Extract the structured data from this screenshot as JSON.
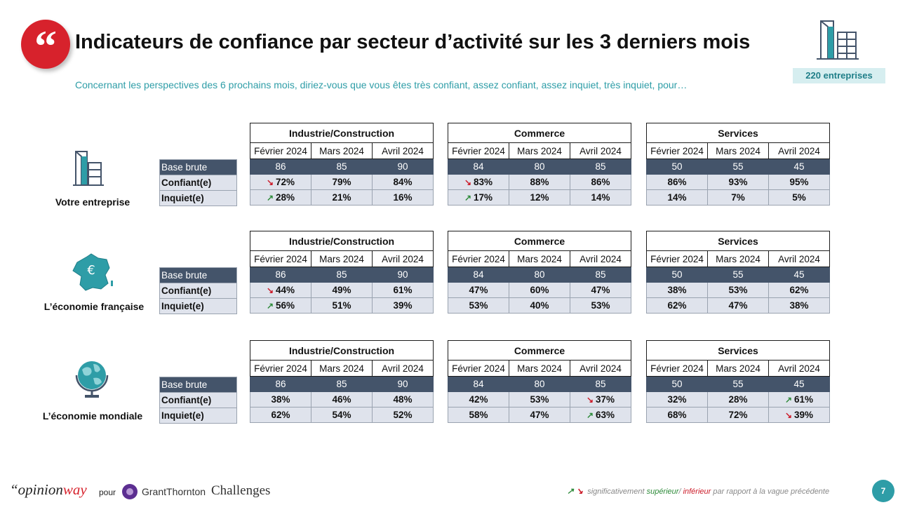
{
  "title": "Indicateurs de confiance par secteur d’activité sur les 3 derniers mois",
  "subtitle": "Concernant les perspectives des 6 prochains mois, diriez-vous que vous êtes très confiant, assez confiant, assez inquiet, très inquiet, pour…",
  "quote_glyph": "“",
  "badge": "220 entreprises",
  "row_labels": {
    "base": "Base brute",
    "confiant": "Confiant(e)",
    "inquiet": "Inquiet(e)"
  },
  "months": [
    "Février 2024",
    "Mars 2024",
    "Avril 2024"
  ],
  "arrows": {
    "up": "↗",
    "down": "↘"
  },
  "icons": {
    "q1": "building-icon",
    "q2": "france-map-euro-icon",
    "q3": "globe-icon",
    "badge": "building-icon"
  },
  "colors": {
    "accent_red": "#d7222c",
    "teal": "#2e9da7",
    "header_dark": "#44546a",
    "cell_light": "#dfe3ec",
    "up": "#2e8b3a",
    "down": "#cc1c2a"
  },
  "blocks": [
    {
      "label": "Votre entreprise",
      "sectors": [
        {
          "name": "Industrie/Construction",
          "base": [
            "86",
            "85",
            "90"
          ],
          "confiant": [
            "72%",
            "79%",
            "84%"
          ],
          "inquiet": [
            "28%",
            "21%",
            "16%"
          ],
          "confiant_arrows": [
            "down",
            "",
            ""
          ],
          "inquiet_arrows": [
            "up",
            "",
            ""
          ]
        },
        {
          "name": "Commerce",
          "base": [
            "84",
            "80",
            "85"
          ],
          "confiant": [
            "83%",
            "88%",
            "86%"
          ],
          "inquiet": [
            "17%",
            "12%",
            "14%"
          ],
          "confiant_arrows": [
            "down",
            "",
            ""
          ],
          "inquiet_arrows": [
            "up",
            "",
            ""
          ]
        },
        {
          "name": "Services",
          "base": [
            "50",
            "55",
            "45"
          ],
          "confiant": [
            "86%",
            "93%",
            "95%"
          ],
          "inquiet": [
            "14%",
            "7%",
            "5%"
          ],
          "confiant_arrows": [
            "",
            "",
            ""
          ],
          "inquiet_arrows": [
            "",
            "",
            ""
          ]
        }
      ]
    },
    {
      "label": "L’économie française",
      "sectors": [
        {
          "name": "Industrie/Construction",
          "base": [
            "86",
            "85",
            "90"
          ],
          "confiant": [
            "44%",
            "49%",
            "61%"
          ],
          "inquiet": [
            "56%",
            "51%",
            "39%"
          ],
          "confiant_arrows": [
            "down",
            "",
            ""
          ],
          "inquiet_arrows": [
            "up",
            "",
            ""
          ]
        },
        {
          "name": "Commerce",
          "base": [
            "84",
            "80",
            "85"
          ],
          "confiant": [
            "47%",
            "60%",
            "47%"
          ],
          "inquiet": [
            "53%",
            "40%",
            "53%"
          ],
          "confiant_arrows": [
            "",
            "",
            ""
          ],
          "inquiet_arrows": [
            "",
            "",
            ""
          ]
        },
        {
          "name": "Services",
          "base": [
            "50",
            "55",
            "45"
          ],
          "confiant": [
            "38%",
            "53%",
            "62%"
          ],
          "inquiet": [
            "62%",
            "47%",
            "38%"
          ],
          "confiant_arrows": [
            "",
            "",
            ""
          ],
          "inquiet_arrows": [
            "",
            "",
            ""
          ]
        }
      ]
    },
    {
      "label": "L’économie mondiale",
      "sectors": [
        {
          "name": "Industrie/Construction",
          "base": [
            "86",
            "85",
            "90"
          ],
          "confiant": [
            "38%",
            "46%",
            "48%"
          ],
          "inquiet": [
            "62%",
            "54%",
            "52%"
          ],
          "confiant_arrows": [
            "",
            "",
            ""
          ],
          "inquiet_arrows": [
            "",
            "",
            ""
          ]
        },
        {
          "name": "Commerce",
          "base": [
            "84",
            "80",
            "85"
          ],
          "confiant": [
            "42%",
            "53%",
            "37%"
          ],
          "inquiet": [
            "58%",
            "47%",
            "63%"
          ],
          "confiant_arrows": [
            "",
            "",
            "down"
          ],
          "inquiet_arrows": [
            "",
            "",
            "up"
          ]
        },
        {
          "name": "Services",
          "base": [
            "50",
            "55",
            "45"
          ],
          "confiant": [
            "32%",
            "28%",
            "61%"
          ],
          "inquiet": [
            "68%",
            "72%",
            "39%"
          ],
          "confiant_arrows": [
            "",
            "",
            "up"
          ],
          "inquiet_arrows": [
            "",
            "",
            "down"
          ]
        }
      ]
    }
  ],
  "footer": {
    "opinion": "“opinion",
    "way": "way",
    "pour": "pour",
    "grant_thornton": "GrantThornton",
    "challenges": "Challenges",
    "legend_prefix": "significativement",
    "legend_sup": "supérieur",
    "legend_sep": "/",
    "legend_inf": "inférieur",
    "legend_suffix": "par rapport à la vague précédente",
    "page_number": "7"
  }
}
